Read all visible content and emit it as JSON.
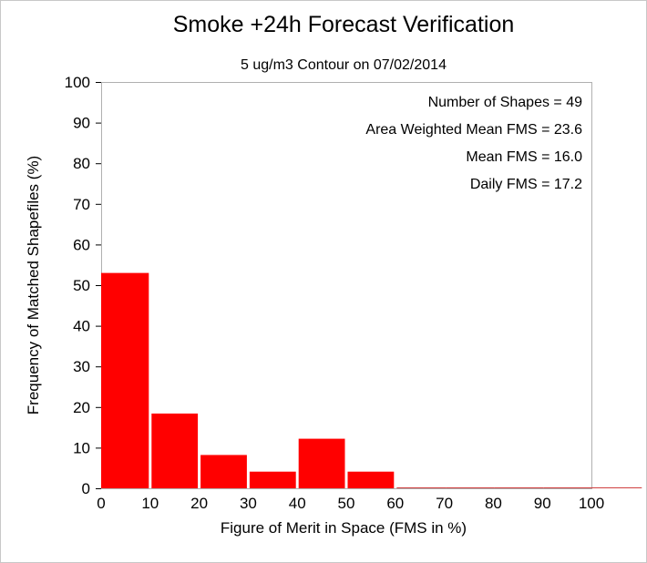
{
  "chart_data": {
    "type": "bar",
    "title": "Smoke +24h Forecast Verification",
    "subtitle": "5 ug/m3 Contour on 07/02/2014",
    "xlabel": "Figure of Merit in Space (FMS in %)",
    "ylabel": "Frequency of Matched Shapefiles (%)",
    "xlim": [
      0,
      110
    ],
    "ylim": [
      0,
      100
    ],
    "xticks": [
      "0",
      "10",
      "20",
      "30",
      "40",
      "50",
      "60",
      "70",
      "80",
      "90",
      "100"
    ],
    "yticks": [
      "0",
      "10",
      "20",
      "30",
      "40",
      "50",
      "60",
      "70",
      "80",
      "90",
      "100"
    ],
    "bins": [
      {
        "start": 0,
        "end": 10,
        "value": 53
      },
      {
        "start": 10,
        "end": 20,
        "value": 18.4
      },
      {
        "start": 20,
        "end": 30,
        "value": 8.2
      },
      {
        "start": 30,
        "end": 40,
        "value": 4.1
      },
      {
        "start": 40,
        "end": 50,
        "value": 12.2
      },
      {
        "start": 50,
        "end": 60,
        "value": 4.1
      },
      {
        "start": 60,
        "end": 70,
        "value": 0
      },
      {
        "start": 70,
        "end": 80,
        "value": 0
      },
      {
        "start": 80,
        "end": 90,
        "value": 0
      },
      {
        "start": 90,
        "end": 100,
        "value": 0
      },
      {
        "start": 100,
        "end": 110,
        "value": 0
      }
    ],
    "bar_color": "#ff0000",
    "grid": false,
    "annotations": [
      "Number of Shapes = 49",
      "Area Weighted Mean FMS = 23.6",
      "Mean FMS = 16.0",
      "Daily FMS = 17.2"
    ]
  }
}
